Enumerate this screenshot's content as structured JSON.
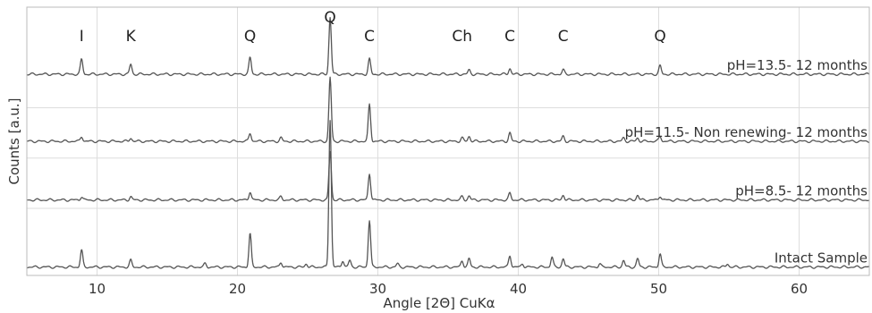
{
  "chart_data": {
    "type": "line",
    "title": "",
    "xlabel": "Angle [2Θ] CuΚα",
    "ylabel": "Counts [a.u.]",
    "xlim": [
      5,
      65
    ],
    "x_ticks": [
      10,
      20,
      30,
      40,
      50,
      60
    ],
    "grid": true,
    "y_gridlines": [
      4,
      7,
      10
    ],
    "ylim": [
      0,
      16
    ],
    "series": [
      {
        "name": "pH=13.5- 12 months",
        "offset": 12,
        "peaks": [
          [
            8.9,
            0.9
          ],
          [
            12.4,
            0.6
          ],
          [
            20.9,
            1.0
          ],
          [
            26.6,
            3.4
          ],
          [
            29.4,
            0.9
          ],
          [
            36.5,
            0.25
          ],
          [
            39.4,
            0.35
          ],
          [
            43.2,
            0.25
          ],
          [
            50.1,
            0.5
          ]
        ]
      },
      {
        "name": "pH=11.5- Non renewing- 12 months",
        "offset": 8,
        "peaks": [
          [
            8.9,
            0.3
          ],
          [
            12.4,
            0.2
          ],
          [
            20.9,
            0.5
          ],
          [
            23.1,
            0.2
          ],
          [
            26.6,
            3.8
          ],
          [
            29.4,
            2.2
          ],
          [
            36.0,
            0.2
          ],
          [
            36.5,
            0.3
          ],
          [
            39.4,
            0.5
          ],
          [
            43.2,
            0.3
          ],
          [
            47.5,
            0.2
          ],
          [
            48.5,
            0.2
          ],
          [
            50.1,
            0.3
          ]
        ]
      },
      {
        "name": "pH=8.5- 12 months",
        "offset": 4.5,
        "peaks": [
          [
            8.9,
            0.2
          ],
          [
            12.4,
            0.2
          ],
          [
            20.9,
            0.5
          ],
          [
            23.1,
            0.2
          ],
          [
            26.6,
            2.9
          ],
          [
            29.4,
            1.6
          ],
          [
            36.0,
            0.2
          ],
          [
            36.5,
            0.25
          ],
          [
            39.4,
            0.4
          ],
          [
            43.2,
            0.3
          ],
          [
            48.5,
            0.3
          ],
          [
            50.1,
            0.25
          ]
        ]
      },
      {
        "name": "Intact Sample",
        "offset": 0.5,
        "peaks": [
          [
            8.9,
            1.0
          ],
          [
            12.4,
            0.4
          ],
          [
            17.7,
            0.2
          ],
          [
            20.9,
            2.0
          ],
          [
            23.1,
            0.3
          ],
          [
            24.9,
            0.2
          ],
          [
            26.6,
            8.8
          ],
          [
            27.5,
            0.4
          ],
          [
            28.0,
            0.4
          ],
          [
            29.4,
            2.8
          ],
          [
            31.4,
            0.2
          ],
          [
            36.0,
            0.4
          ],
          [
            36.5,
            0.5
          ],
          [
            39.4,
            0.7
          ],
          [
            40.3,
            0.2
          ],
          [
            42.4,
            0.6
          ],
          [
            43.2,
            0.5
          ],
          [
            45.8,
            0.2
          ],
          [
            47.5,
            0.4
          ],
          [
            48.5,
            0.5
          ],
          [
            50.1,
            0.8
          ],
          [
            54.9,
            0.2
          ]
        ]
      }
    ],
    "phase_labels": [
      {
        "text": "I",
        "x": 8.9
      },
      {
        "text": "K",
        "x": 12.4
      },
      {
        "text": "Q",
        "x": 20.9
      },
      {
        "text": "Q",
        "x": 26.6
      },
      {
        "text": "C",
        "x": 29.4
      },
      {
        "text": "Ch",
        "x": 36.0
      },
      {
        "text": "C",
        "x": 39.4
      },
      {
        "text": "C",
        "x": 43.2
      },
      {
        "text": "Q",
        "x": 50.1
      }
    ]
  }
}
